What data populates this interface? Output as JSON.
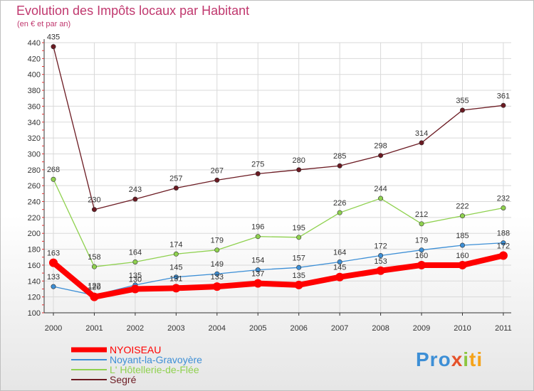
{
  "chart_data": {
    "type": "line",
    "title": "Evolution des Impôts locaux par Habitant",
    "subtitle": "(en € et par an)",
    "categories": [
      "2000",
      "2001",
      "2002",
      "2003",
      "2004",
      "2005",
      "2006",
      "2007",
      "2008",
      "2009",
      "2010",
      "2011"
    ],
    "yticks": [
      100,
      120,
      140,
      160,
      180,
      200,
      220,
      240,
      260,
      280,
      300,
      320,
      340,
      360,
      380,
      400,
      420,
      440
    ],
    "ylim": [
      100,
      440
    ],
    "series": [
      {
        "name": "Segré",
        "color": "#6b1a22",
        "values": [
          435,
          230,
          243,
          257,
          267,
          275,
          280,
          285,
          298,
          314,
          355,
          361
        ]
      },
      {
        "name": "L' Hôtellerie-de-Flée",
        "color": "#8fd14f",
        "values": [
          268,
          158,
          164,
          174,
          179,
          196,
          195,
          226,
          244,
          212,
          222,
          232
        ]
      },
      {
        "name": "Noyant-la-Gravoyère",
        "color": "#3d8fd6",
        "values": [
          133,
          122,
          135,
          145,
          149,
          154,
          157,
          164,
          172,
          179,
          185,
          188
        ]
      },
      {
        "name": "NYOISEAU",
        "color": "#ff0000",
        "values": [
          163,
          120,
          130,
          131,
          133,
          137,
          135,
          145,
          153,
          160,
          160,
          172
        ]
      }
    ],
    "legend": [
      {
        "name": "NYOISEAU",
        "color": "#ff0000"
      },
      {
        "name": "Noyant-la-Gravoyère",
        "color": "#3d8fd6"
      },
      {
        "name": "L' Hôtellerie-de-Flée",
        "color": "#8fd14f"
      },
      {
        "name": "Segré",
        "color": "#6b1a22"
      }
    ]
  },
  "logo": {
    "p1": "Pro",
    "p2": "x",
    "p3": "i",
    "p4": "ti"
  }
}
